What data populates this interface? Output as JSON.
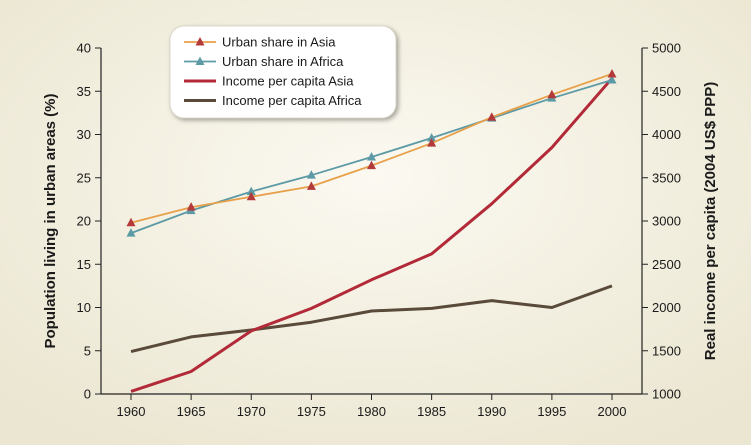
{
  "chart_data": {
    "type": "line",
    "x": [
      1960,
      1965,
      1970,
      1975,
      1980,
      1985,
      1990,
      1995,
      2000
    ],
    "xticks": [
      "1960",
      "1965",
      "1970",
      "1975",
      "1980",
      "1985",
      "1990",
      "1995",
      "2000"
    ],
    "ylabel": "Population living in urban areas (%)",
    "ylim": [
      0,
      40
    ],
    "yticks": [
      "0",
      "5",
      "10",
      "15",
      "20",
      "25",
      "30",
      "35",
      "40"
    ],
    "y2label": "Real income per capita (2004 US$ PPP)",
    "y2lim": [
      1000,
      5000
    ],
    "y2ticks": [
      "1000",
      "1500",
      "2000",
      "2500",
      "3000",
      "3500",
      "4000",
      "4500",
      "5000"
    ],
    "grid": false,
    "legend_position": "top-left",
    "series": [
      {
        "name": "Urban share in Asia",
        "axis": "left",
        "color": "#e8a04a",
        "marker": "triangle",
        "marker_color": "#b33a3a",
        "values": [
          19.8,
          21.6,
          22.8,
          24.0,
          26.4,
          29.0,
          32.0,
          34.6,
          37.0
        ]
      },
      {
        "name": "Urban share in Africa",
        "axis": "left",
        "color": "#5c9aa6",
        "marker": "triangle",
        "marker_color": "#5c9aa6",
        "values": [
          18.6,
          21.2,
          23.4,
          25.3,
          27.4,
          29.6,
          31.9,
          34.2,
          36.3
        ]
      },
      {
        "name": "Income per capita Asia",
        "axis": "right",
        "color": "#b22a38",
        "marker": "none",
        "values": [
          1030,
          1260,
          1730,
          1990,
          2320,
          2620,
          3200,
          3850,
          4650
        ]
      },
      {
        "name": "Income per capita Africa",
        "axis": "right",
        "color": "#5a4a3a",
        "marker": "none",
        "values": [
          1490,
          1660,
          1740,
          1830,
          1960,
          1990,
          2080,
          2000,
          2250
        ]
      }
    ]
  }
}
